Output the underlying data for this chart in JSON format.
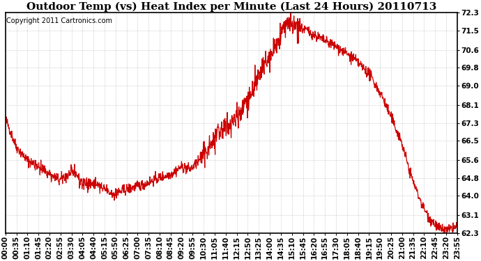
{
  "title": "Outdoor Temp (vs) Heat Index per Minute (Last 24 Hours) 20110713",
  "copyright": "Copyright 2011 Cartronics.com",
  "line_color": "#cc0000",
  "background_color": "#ffffff",
  "plot_bg_color": "#ffffff",
  "grid_color": "#bbbbbb",
  "yticks": [
    62.3,
    63.1,
    64.0,
    64.8,
    65.6,
    66.5,
    67.3,
    68.1,
    69.0,
    69.8,
    70.6,
    71.5,
    72.3
  ],
  "ylim": [
    62.3,
    72.3
  ],
  "xtick_labels": [
    "00:00",
    "00:35",
    "01:10",
    "01:45",
    "02:20",
    "02:55",
    "03:30",
    "04:05",
    "04:40",
    "05:15",
    "05:50",
    "06:25",
    "07:00",
    "07:35",
    "08:10",
    "08:45",
    "09:20",
    "09:55",
    "10:30",
    "11:05",
    "11:40",
    "12:15",
    "12:50",
    "13:25",
    "14:00",
    "14:35",
    "15:10",
    "15:45",
    "16:20",
    "16:55",
    "17:30",
    "18:05",
    "18:40",
    "19:15",
    "19:50",
    "20:25",
    "21:00",
    "21:35",
    "22:10",
    "22:45",
    "23:20",
    "23:55"
  ],
  "key_times": [
    0,
    35,
    70,
    120,
    160,
    175,
    220,
    240,
    290,
    320,
    350,
    390,
    440,
    490,
    530,
    560,
    590,
    620,
    650,
    680,
    730,
    780,
    810,
    840,
    870,
    900,
    960,
    1020,
    1050,
    1080,
    1110,
    1140,
    1160,
    1200,
    1230,
    1260,
    1290,
    1310,
    1330,
    1350,
    1380,
    1410,
    1439
  ],
  "key_vals": [
    67.5,
    66.2,
    65.6,
    65.2,
    64.8,
    64.7,
    65.1,
    64.6,
    64.5,
    64.2,
    64.1,
    64.3,
    64.5,
    64.8,
    65.0,
    65.3,
    65.2,
    65.6,
    66.2,
    66.8,
    67.5,
    68.5,
    69.5,
    70.2,
    71.0,
    71.8,
    71.5,
    71.0,
    70.8,
    70.5,
    70.2,
    69.8,
    69.5,
    68.5,
    67.5,
    66.5,
    65.0,
    64.2,
    63.5,
    63.0,
    62.5,
    62.4,
    62.6
  ],
  "noise_seed": 42,
  "title_fontsize": 11,
  "copyright_fontsize": 7,
  "tick_fontsize": 7.5,
  "figwidth": 6.9,
  "figheight": 3.75,
  "dpi": 100
}
